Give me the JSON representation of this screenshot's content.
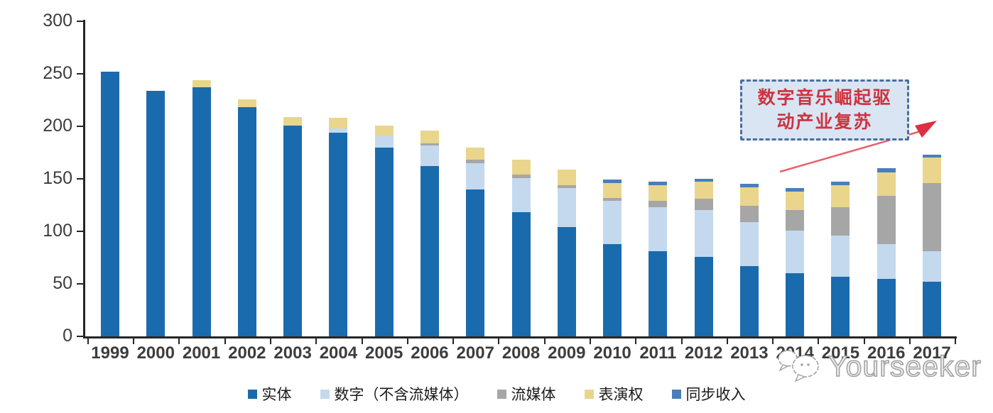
{
  "chart_data": {
    "type": "bar",
    "stacked": true,
    "title": "",
    "xlabel": "",
    "ylabel": "",
    "ylim": [
      0,
      300
    ],
    "yticks": [
      0,
      50,
      100,
      150,
      200,
      250,
      300
    ],
    "grid": false,
    "legend_position": "bottom",
    "categories": [
      "1999",
      "2000",
      "2001",
      "2002",
      "2003",
      "2004",
      "2005",
      "2006",
      "2007",
      "2008",
      "2009",
      "2010",
      "2011",
      "2012",
      "2013",
      "2014",
      "2015",
      "2016",
      "2017"
    ],
    "series": [
      {
        "name": "实体",
        "color": "#1a6bad",
        "values": [
          252,
          234,
          237,
          218,
          201,
          194,
          180,
          162,
          140,
          118,
          104,
          88,
          81,
          76,
          67,
          60,
          57,
          55,
          52
        ]
      },
      {
        "name": "数字（不含流媒体）",
        "color": "#c4d9ee",
        "values": [
          0,
          0,
          0,
          0,
          0,
          4,
          11,
          20,
          25,
          33,
          37,
          41,
          42,
          44,
          42,
          41,
          39,
          33,
          29
        ]
      },
      {
        "name": "流媒体",
        "color": "#a6a6a6",
        "values": [
          0,
          0,
          0,
          0,
          0,
          0,
          0,
          2,
          3,
          3,
          3,
          3,
          6,
          11,
          15,
          19,
          27,
          46,
          65
        ]
      },
      {
        "name": "表演权",
        "color": "#e9d58c",
        "values": [
          0,
          0,
          7,
          8,
          8,
          10,
          10,
          12,
          12,
          14,
          15,
          14,
          15,
          16,
          18,
          18,
          21,
          22,
          24
        ]
      },
      {
        "name": "同步收入",
        "color": "#4a7ebb",
        "values": [
          0,
          0,
          0,
          0,
          0,
          0,
          0,
          0,
          0,
          0,
          0,
          3,
          3,
          3,
          3,
          3,
          3,
          4,
          3
        ]
      }
    ],
    "totals": [
      252,
      234,
      244,
      226,
      209,
      208,
      201,
      196,
      180,
      168,
      159,
      149,
      147,
      150,
      145,
      141,
      147,
      160,
      173
    ]
  },
  "annotation": {
    "line1": "数字音乐崛起驱",
    "line2": "动产业复苏",
    "text_color": "#ce3340",
    "box_fill": "#d9e5f2",
    "box_border_color": "#4a6d9e",
    "arrow_color": "#e8606b"
  },
  "watermark": {
    "text": "Yourseeker",
    "logo": "chat-bubbles-icon",
    "color": "#a3a3a3"
  },
  "axis": {
    "line_color": "#262626",
    "label_color": "#3d3d3d"
  }
}
